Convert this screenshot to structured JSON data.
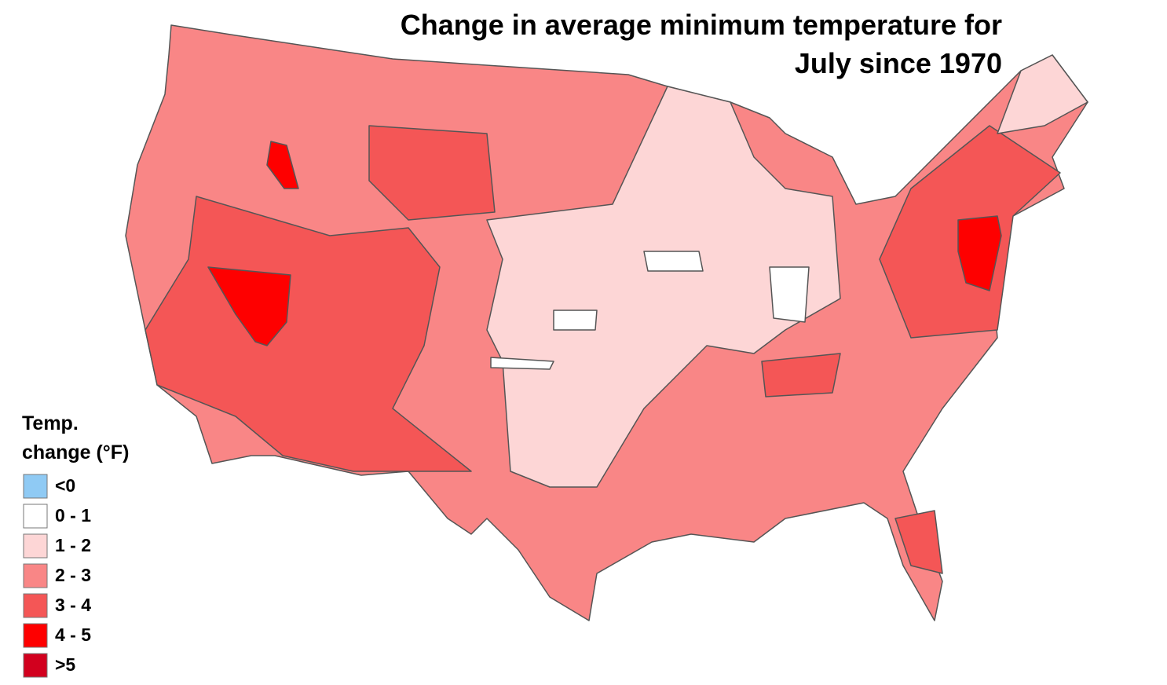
{
  "title": [
    "Change in average minimum temperature for",
    "July since 1970"
  ],
  "legend": {
    "title": [
      "Temp.",
      "change (°F)"
    ],
    "items": [
      {
        "label": "<0",
        "color": "#8fcaf4"
      },
      {
        "label": "0 - 1",
        "color": "#ffffff"
      },
      {
        "label": "1 - 2",
        "color": "#fdd6d6"
      },
      {
        "label": "2 - 3",
        "color": "#f98686"
      },
      {
        "label": "3 - 4",
        "color": "#f45656"
      },
      {
        "label": "4 - 5",
        "color": "#fe0000"
      },
      {
        "label": ">5",
        "color": "#d2001e"
      }
    ]
  }
}
